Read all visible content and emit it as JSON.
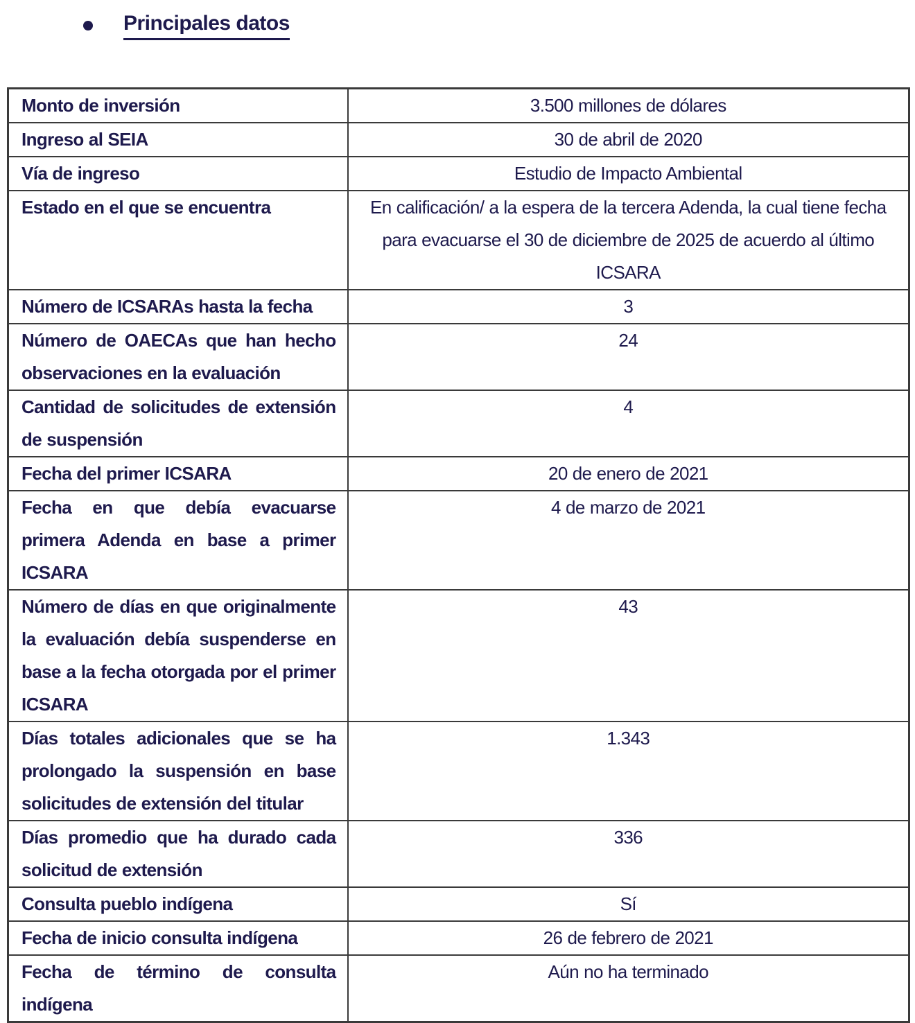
{
  "colors": {
    "text": "#1e1a4d",
    "border": "#3a3a3a",
    "background": "#ffffff"
  },
  "heading": {
    "title": "Principales datos"
  },
  "table": {
    "rows": [
      {
        "label": "Monto de inversión",
        "value": "3.500 millones de dólares"
      },
      {
        "label": "Ingreso al SEIA",
        "value": "30 de abril de 2020"
      },
      {
        "label": "Vía de ingreso",
        "value": "Estudio de Impacto Ambiental"
      },
      {
        "label": "Estado en el que se encuentra",
        "value": "En calificación/ a la espera de la tercera Adenda, la cual tiene fecha para evacuarse el 30 de diciembre de 2025 de acuerdo al último ICSARA"
      },
      {
        "label": "Número de ICSARAs hasta la fecha",
        "value": "3"
      },
      {
        "label": "Número de OAECAs que han hecho observaciones en la evaluación",
        "value": "24"
      },
      {
        "label": "Cantidad de solicitudes de extensión de suspensión",
        "value": "4"
      },
      {
        "label": "Fecha del primer ICSARA",
        "value": "20 de enero de 2021"
      },
      {
        "label": "Fecha en que debía evacuarse primera Adenda en base a primer ICSARA",
        "value": "4 de marzo de 2021"
      },
      {
        "label": "Número de días en que originalmente la evaluación debía suspenderse en base a la fecha otorgada por el primer ICSARA",
        "value": "43"
      },
      {
        "label": "Días totales adicionales que se ha prolongado la suspensión en base solicitudes de extensión del titular",
        "value": "1.343"
      },
      {
        "label": "Días promedio que ha durado cada solicitud de extensión",
        "value": "336"
      },
      {
        "label": "Consulta pueblo indígena",
        "value": "Sí"
      },
      {
        "label": "Fecha de inicio consulta indígena",
        "value": "26 de febrero de 2021"
      },
      {
        "label": "Fecha de término de consulta indígena",
        "value": "Aún no ha terminado"
      }
    ]
  }
}
